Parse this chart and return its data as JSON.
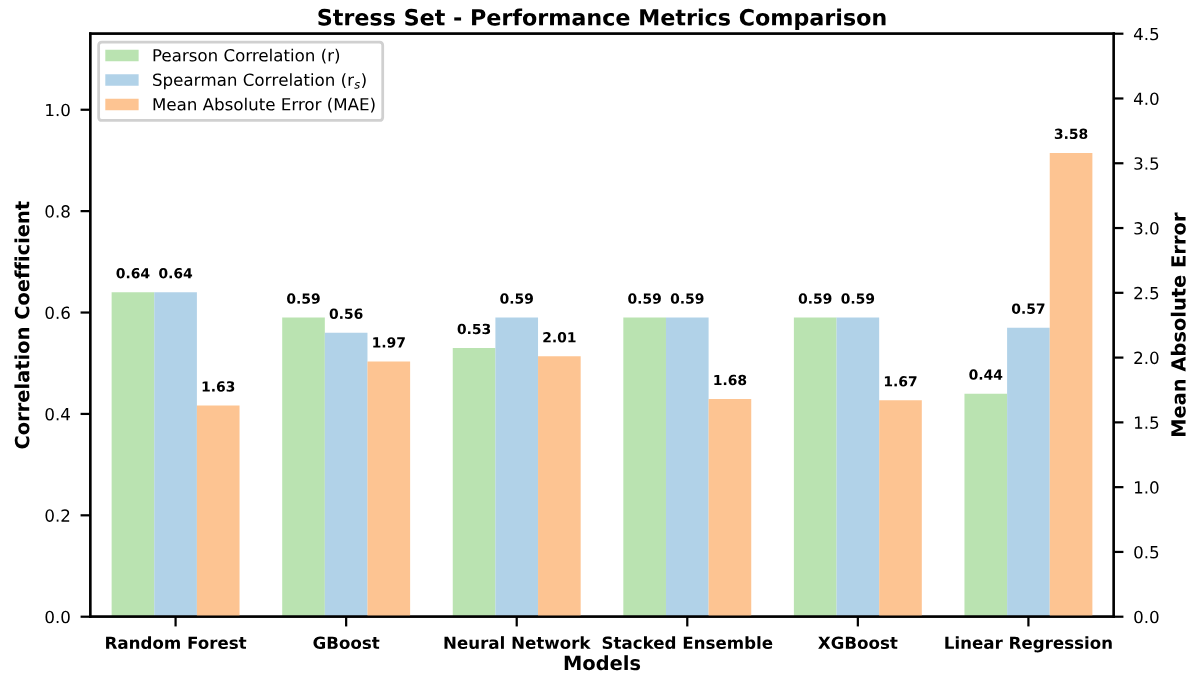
{
  "chart_data": {
    "type": "bar",
    "title": "Stress Set - Performance Metrics Comparison",
    "xlabel": "Models",
    "ylabel": "Correlation Coefficient",
    "y2label": "Mean Absolute Error",
    "categories": [
      "Random Forest",
      "GBoost",
      "Neural Network",
      "Stacked Ensemble",
      "XGBoost",
      "Linear Regression"
    ],
    "series": [
      {
        "name": "Pearson Correlation (r)",
        "color": "#b2e0a8",
        "values": [
          0.64,
          0.59,
          0.53,
          0.59,
          0.59,
          0.44
        ]
      },
      {
        "name": "Spearman Correlation (r$_{s}$)",
        "color": "#a9cde6",
        "values": [
          0.64,
          0.56,
          0.59,
          0.59,
          0.59,
          0.57
        ]
      },
      {
        "name": "Mean Absolute Error (MAE)",
        "color": "#fdbe86",
        "values": [
          1.63,
          1.97,
          2.01,
          1.68,
          1.67,
          3.58
        ],
        "axis": "y2"
      }
    ],
    "ylim": [
      0,
      1.15
    ],
    "yticks": [
      {
        "value": 0,
        "label": "0.0"
      },
      0.2,
      0.4,
      0.6,
      0.8,
      {
        "value": 1,
        "label": "1.0"
      }
    ],
    "y2lim": [
      0,
      4.5
    ],
    "y2ticks": [
      {
        "value": 0,
        "label": "0.0"
      },
      0.5,
      {
        "value": 1,
        "label": "1.0"
      },
      1.5,
      {
        "value": 2,
        "label": "2.0"
      },
      2.5,
      {
        "value": 3,
        "label": "3.0"
      },
      3.5,
      {
        "value": 4,
        "label": "4.0"
      },
      4.5
    ],
    "data_labels": true,
    "legend": "top left",
    "grid": false
  }
}
